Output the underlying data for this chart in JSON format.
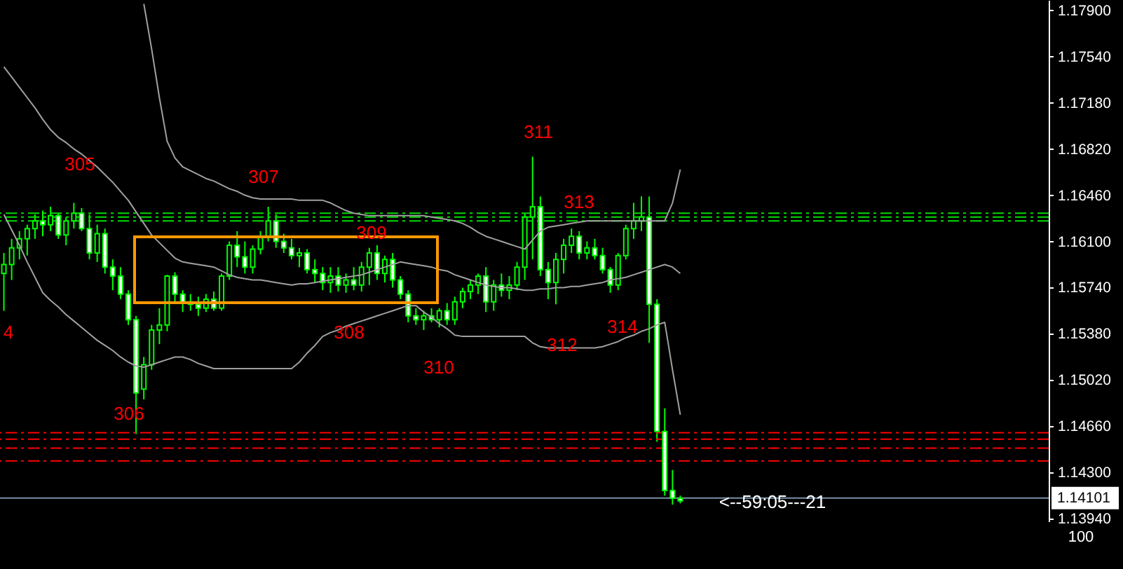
{
  "chart_data": {
    "type": "candlestick",
    "legend": false,
    "grid": false,
    "tick_labels": "y",
    "ylim": [
      1.1392,
      1.1798
    ],
    "categories": [
      null,
      null,
      null,
      null,
      null,
      null,
      null,
      null,
      null,
      null,
      null,
      null,
      null,
      null,
      null,
      null,
      null,
      null,
      null,
      null,
      null,
      null,
      null,
      null,
      null,
      null,
      null,
      null,
      null,
      null,
      null,
      null,
      null,
      null,
      null,
      null,
      null,
      null,
      null,
      null,
      null,
      null,
      null,
      null,
      null,
      null,
      null,
      null,
      null,
      null,
      null,
      null,
      null,
      null,
      null,
      null,
      null,
      null,
      null,
      null,
      null,
      null,
      null,
      null,
      null,
      null,
      null,
      null,
      null,
      null,
      null,
      null,
      null,
      null,
      null,
      null,
      null,
      null,
      null,
      null,
      null,
      null,
      null,
      null,
      null,
      null,
      null,
      null
    ],
    "yticks": [
      {
        "value": 1.179,
        "label": "1.17900"
      },
      {
        "value": 1.1754,
        "label": "1.17540"
      },
      {
        "value": 1.1718,
        "label": "1.17180"
      },
      {
        "value": 1.1682,
        "label": "1.16820"
      },
      {
        "value": 1.1646,
        "label": "1.16460"
      },
      {
        "value": 1.161,
        "label": "1.16100"
      },
      {
        "value": 1.1574,
        "label": "1.15740"
      },
      {
        "value": 1.1538,
        "label": "1.15380"
      },
      {
        "value": 1.1502,
        "label": "1.15020"
      },
      {
        "value": 1.1466,
        "label": "1.14660"
      },
      {
        "value": 1.143,
        "label": "1.14300"
      },
      {
        "value": 1.1394,
        "label": "1.13940"
      }
    ],
    "series": [
      {
        "color": "#00ff00",
        "ohlc": [
          [
            1.1585,
            1.1601,
            1.1556,
            1.1592
          ],
          [
            1.1592,
            1.1612,
            1.158,
            1.1605
          ],
          [
            1.1605,
            1.1618,
            1.1596,
            1.1612
          ],
          [
            1.1612,
            1.1623,
            1.1599,
            1.162
          ],
          [
            1.162,
            1.1631,
            1.1612,
            1.1626
          ],
          [
            1.1626,
            1.1634,
            1.1614,
            1.1623
          ],
          [
            1.1623,
            1.1637,
            1.1618,
            1.163
          ],
          [
            1.163,
            1.1632,
            1.1612,
            1.1615
          ],
          [
            1.1615,
            1.1629,
            1.1607,
            1.1626
          ],
          [
            1.1626,
            1.164,
            1.162,
            1.1632
          ],
          [
            1.1632,
            1.1636,
            1.1618,
            1.162
          ],
          [
            1.162,
            1.1631,
            1.1596,
            1.1601
          ],
          [
            1.1601,
            1.1623,
            1.1594,
            1.1616
          ],
          [
            1.1616,
            1.162,
            1.1585,
            1.159
          ],
          [
            1.159,
            1.1596,
            1.1572,
            1.1583
          ],
          [
            1.1583,
            1.159,
            1.1565,
            1.1569
          ],
          [
            1.1569,
            1.1572,
            1.1545,
            1.1549
          ],
          [
            1.1549,
            1.1552,
            1.146,
            1.1492
          ],
          [
            1.1495,
            1.152,
            1.1487,
            1.1514
          ],
          [
            1.1514,
            1.1545,
            1.151,
            1.1541
          ],
          [
            1.1541,
            1.1558,
            1.153,
            1.1545
          ],
          [
            1.1545,
            1.1584,
            1.154,
            1.1583
          ],
          [
            1.1583,
            1.1586,
            1.1563,
            1.1569
          ],
          [
            1.1569,
            1.1572,
            1.1555,
            1.1563
          ],
          [
            1.1563,
            1.1569,
            1.1556,
            1.1561
          ],
          [
            1.1561,
            1.1567,
            1.1552,
            1.1558
          ],
          [
            1.1558,
            1.1569,
            1.1555,
            1.1565
          ],
          [
            1.1565,
            1.1571,
            1.1556,
            1.1558
          ],
          [
            1.1558,
            1.1585,
            1.1556,
            1.1583
          ],
          [
            1.1583,
            1.161,
            1.158,
            1.1607
          ],
          [
            1.1607,
            1.1618,
            1.159,
            1.1598
          ],
          [
            1.1598,
            1.161,
            1.1585,
            1.159
          ],
          [
            1.159,
            1.1607,
            1.1585,
            1.1604
          ],
          [
            1.1604,
            1.1618,
            1.16,
            1.1614
          ],
          [
            1.1614,
            1.1637,
            1.161,
            1.1626
          ],
          [
            1.1626,
            1.1631,
            1.1605,
            1.161
          ],
          [
            1.161,
            1.1616,
            1.1601,
            1.1605
          ],
          [
            1.1605,
            1.1612,
            1.1596,
            1.1599
          ],
          [
            1.1599,
            1.1605,
            1.159,
            1.1601
          ],
          [
            1.1601,
            1.1604,
            1.1585,
            1.1588
          ],
          [
            1.1588,
            1.1596,
            1.1578,
            1.1585
          ],
          [
            1.1585,
            1.159,
            1.1572,
            1.1578
          ],
          [
            1.1578,
            1.159,
            1.157,
            1.1583
          ],
          [
            1.1583,
            1.159,
            1.1571,
            1.1576
          ],
          [
            1.1576,
            1.1585,
            1.157,
            1.158
          ],
          [
            1.158,
            1.159,
            1.1572,
            1.1576
          ],
          [
            1.1576,
            1.1594,
            1.1571,
            1.159
          ],
          [
            1.159,
            1.1605,
            1.1576,
            1.1601
          ],
          [
            1.1601,
            1.1607,
            1.158,
            1.1585
          ],
          [
            1.1585,
            1.1599,
            1.1578,
            1.1596
          ],
          [
            1.1596,
            1.1601,
            1.1574,
            1.158
          ],
          [
            1.158,
            1.1583,
            1.1565,
            1.1569
          ],
          [
            1.1569,
            1.1572,
            1.1547,
            1.1552
          ],
          [
            1.1552,
            1.1558,
            1.1545,
            1.1549
          ],
          [
            1.1549,
            1.1556,
            1.1541,
            1.1552
          ],
          [
            1.1552,
            1.1558,
            1.1547,
            1.1549
          ],
          [
            1.1549,
            1.1558,
            1.1543,
            1.1556
          ],
          [
            1.1556,
            1.1562,
            1.1545,
            1.1549
          ],
          [
            1.1549,
            1.1567,
            1.1545,
            1.1563
          ],
          [
            1.1563,
            1.1574,
            1.1558,
            1.1571
          ],
          [
            1.1571,
            1.158,
            1.1565,
            1.1576
          ],
          [
            1.1576,
            1.1585,
            1.1569,
            1.1583
          ],
          [
            1.1583,
            1.159,
            1.1555,
            1.1563
          ],
          [
            1.1563,
            1.158,
            1.1556,
            1.1576
          ],
          [
            1.1576,
            1.1585,
            1.1567,
            1.1572
          ],
          [
            1.1572,
            1.1583,
            1.1565,
            1.1576
          ],
          [
            1.1576,
            1.1594,
            1.1572,
            1.159
          ],
          [
            1.159,
            1.1632,
            1.158,
            1.1629
          ],
          [
            1.1629,
            1.1676,
            1.1596,
            1.1637
          ],
          [
            1.1637,
            1.1645,
            1.1583,
            1.1588
          ],
          [
            1.1588,
            1.1594,
            1.1565,
            1.1578
          ],
          [
            1.1578,
            1.1601,
            1.1561,
            1.1596
          ],
          [
            1.1596,
            1.1612,
            1.1585,
            1.1607
          ],
          [
            1.1607,
            1.162,
            1.1601,
            1.1614
          ],
          [
            1.1614,
            1.1618,
            1.1596,
            1.1601
          ],
          [
            1.1601,
            1.161,
            1.1596,
            1.1605
          ],
          [
            1.1605,
            1.1612,
            1.1596,
            1.1599
          ],
          [
            1.1599,
            1.1605,
            1.1585,
            1.1588
          ],
          [
            1.1588,
            1.159,
            1.157,
            1.1576
          ],
          [
            1.1576,
            1.1601,
            1.1572,
            1.1599
          ],
          [
            1.1599,
            1.1623,
            1.1596,
            1.162
          ],
          [
            1.162,
            1.164,
            1.1612,
            1.1626
          ],
          [
            1.1626,
            1.1645,
            1.1618,
            1.1629
          ],
          [
            1.1629,
            1.1645,
            1.1531,
            1.1561
          ],
          [
            1.1561,
            1.1565,
            1.1454,
            1.1462
          ],
          [
            1.1462,
            1.148,
            1.1412,
            1.1416
          ],
          [
            1.1416,
            1.1432,
            1.1405,
            1.141
          ],
          [
            1.141,
            1.1412,
            1.1406,
            1.1408
          ]
        ]
      },
      {
        "type": "line",
        "color": "#a0a0a0",
        "values": [
          1.1746,
          1.1738,
          1.173,
          1.1722,
          1.1714,
          1.1705,
          1.1697,
          1.1691,
          1.1687,
          1.1682,
          1.1678,
          1.1673,
          1.1668,
          1.1662,
          1.1656,
          1.1649,
          1.1642,
          1.1633,
          1.1624,
          1.1615,
          1.1609,
          1.1603,
          1.1597,
          1.1594,
          1.1593,
          1.1592,
          1.1591,
          1.159,
          1.1587,
          1.1584,
          1.1582,
          1.1581,
          1.158,
          1.158,
          1.1579,
          1.1578,
          1.1577,
          1.1576,
          1.1577,
          1.1577,
          1.1578,
          1.1579,
          1.158,
          1.1581,
          1.1582,
          1.1583,
          1.1584,
          1.1586,
          1.1588,
          1.159,
          1.1592,
          1.1594,
          1.1593,
          1.1592,
          1.1591,
          1.159,
          1.1588,
          1.1587,
          1.1584,
          1.1582,
          1.158,
          1.1578,
          1.1576,
          1.1575,
          1.1574,
          1.1574,
          1.1573,
          1.1572,
          1.1572,
          1.1573,
          1.1573,
          1.1574,
          1.1574,
          1.1575,
          1.1575,
          1.1576,
          1.1577,
          1.1578,
          1.158,
          1.1581,
          1.1582,
          1.1584,
          1.1586,
          1.1588,
          1.159,
          1.1592,
          1.159,
          1.1585
        ]
      },
      {
        "type": "line",
        "color": "#a0a0a0",
        "values": [
          null,
          null,
          null,
          null,
          null,
          null,
          null,
          null,
          null,
          null,
          null,
          null,
          null,
          null,
          null,
          null,
          null,
          null,
          1.1795,
          1.176,
          1.1722,
          1.1688,
          1.1675,
          1.1668,
          1.1665,
          1.1662,
          1.1659,
          1.1657,
          1.1654,
          1.1651,
          1.1649,
          1.1646,
          1.1644,
          1.1643,
          1.1643,
          1.1643,
          1.1643,
          1.1643,
          1.1642,
          1.1642,
          1.1642,
          1.1642,
          1.164,
          1.1637,
          1.1634,
          1.1632,
          1.1631,
          1.163,
          1.163,
          1.163,
          1.163,
          1.163,
          1.163,
          1.163,
          1.163,
          1.1629,
          1.1628,
          1.1627,
          1.1626,
          1.1624,
          1.1621,
          1.1617,
          1.1614,
          1.1612,
          1.161,
          1.1608,
          1.1606,
          1.1604,
          1.1611,
          1.1618,
          1.1621,
          1.1622,
          1.1623,
          1.1624,
          1.1625,
          1.1626,
          1.1626,
          1.1626,
          1.1626,
          1.1626,
          1.1626,
          1.1626,
          1.1626,
          1.1626,
          1.1626,
          1.1626,
          1.164,
          1.1666
        ]
      },
      {
        "type": "line",
        "color": "#a0a0a0",
        "values": [
          1.1631,
          1.1619,
          1.1607,
          1.1594,
          1.1582,
          1.157,
          1.1564,
          1.1559,
          1.1553,
          1.1548,
          1.1543,
          1.1538,
          1.1533,
          1.1529,
          1.1525,
          1.152,
          1.1516,
          1.1513,
          1.1512,
          1.1514,
          1.1516,
          1.1518,
          1.152,
          1.152,
          1.1518,
          1.1515,
          1.1513,
          1.1511,
          1.1511,
          1.1511,
          1.1511,
          1.1511,
          1.1511,
          1.1511,
          1.1511,
          1.1511,
          1.1511,
          1.1511,
          1.1516,
          1.1523,
          1.1529,
          1.1536,
          1.1539,
          1.1541,
          1.1544,
          1.1546,
          1.1548,
          1.155,
          1.1552,
          1.1554,
          1.1556,
          1.1558,
          1.156,
          1.156,
          1.1555,
          1.1551,
          1.1546,
          1.1542,
          1.1537,
          1.1536,
          1.1536,
          1.1536,
          1.1536,
          1.1536,
          1.1536,
          1.1536,
          1.1536,
          1.1536,
          1.1531,
          1.1528,
          1.1527,
          1.1527,
          1.1527,
          1.1527,
          1.1527,
          1.1527,
          1.1527,
          1.1528,
          1.153,
          1.1532,
          1.1535,
          1.1537,
          1.154,
          1.1542,
          1.1545,
          1.1547,
          1.151,
          1.1475
        ]
      }
    ],
    "ref_lines": [
      {
        "axis": "y",
        "value": 1.1632,
        "color": "#00dd00",
        "line_style": "dashed"
      },
      {
        "axis": "y",
        "value": 1.1629,
        "color": "#00dd00",
        "line_style": "dashed"
      },
      {
        "axis": "y",
        "value": 1.1626,
        "color": "#00dd00",
        "line_style": "dashed"
      },
      {
        "axis": "y",
        "value": 1.1461,
        "color": "#ff0000",
        "line_style": "dashed"
      },
      {
        "axis": "y",
        "value": 1.1456,
        "color": "#ff0000",
        "line_style": "dashed"
      },
      {
        "axis": "y",
        "value": 1.1449,
        "color": "#ff0000",
        "line_style": "dashed"
      },
      {
        "axis": "y",
        "value": 1.1439,
        "color": "#ff0000",
        "line_style": "dashed"
      },
      {
        "axis": "y",
        "value": 1.14101,
        "label": "1.14101",
        "color": "#7890a8",
        "line_style": "solid"
      }
    ],
    "annotations": [
      "4",
      "305",
      "306",
      "307",
      "308",
      "309",
      "310",
      "311",
      "312",
      "313",
      "314",
      "<--59:05---21",
      "100"
    ]
  }
}
